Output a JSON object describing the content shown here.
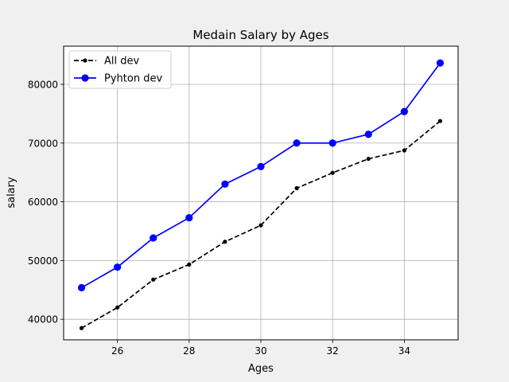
{
  "chart_data": {
    "type": "line",
    "title": "Medain Salary by Ages",
    "xlabel": "Ages",
    "ylabel": "salary",
    "x": [
      25,
      26,
      27,
      28,
      29,
      30,
      31,
      32,
      33,
      34,
      35
    ],
    "xlim": [
      24.5,
      35.5
    ],
    "ylim": [
      36500,
      86500
    ],
    "x_ticks": [
      26,
      28,
      30,
      32,
      34
    ],
    "y_ticks": [
      40000,
      50000,
      60000,
      70000,
      80000
    ],
    "grid": true,
    "legend_position": "top-left",
    "series": [
      {
        "name": "All dev",
        "color": "#000000",
        "line_style": "dashed",
        "marker": "small-dot",
        "values": [
          38496,
          42000,
          46752,
          49320,
          53200,
          56000,
          62316,
          64928,
          67317,
          68748,
          73752
        ]
      },
      {
        "name": "Pyhton dev",
        "color": "#0000ff",
        "line_style": "solid",
        "marker": "circle",
        "values": [
          45372,
          48876,
          53850,
          57287,
          63016,
          65998,
          70003,
          70000,
          71496,
          75370,
          83640
        ]
      }
    ]
  }
}
